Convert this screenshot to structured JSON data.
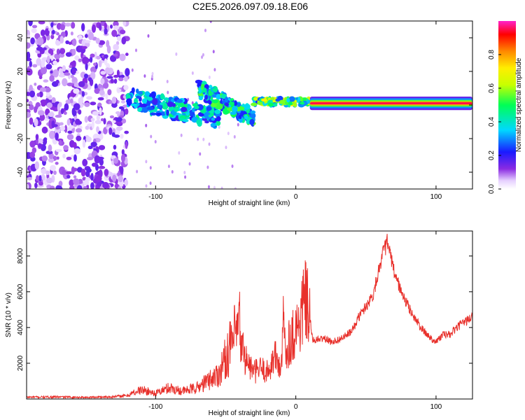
{
  "figure": {
    "title": "C2E5.2026.097.09.18.E06"
  },
  "chart_data": [
    {
      "type": "heatmap",
      "title": "C2E5.2026.097.09.18.E06",
      "xlabel": "Height of straight line (km)",
      "ylabel": "Frequency (Hz)",
      "xlim": [
        -192,
        126
      ],
      "ylim": [
        -50,
        50
      ],
      "xticks": [
        -100,
        0,
        100
      ],
      "yticks": [
        -40,
        -20,
        0,
        20,
        40
      ],
      "colorbar": {
        "label": "Normalized spectral amplitude",
        "range": [
          0,
          1
        ],
        "ticks": [
          0,
          0.2,
          0.4,
          0.6,
          0.8
        ]
      },
      "features": [
        {
          "name": "noise",
          "x_range": [
            -192,
            -120
          ],
          "y_range": [
            -50,
            50
          ],
          "amplitude": 0.15
        },
        {
          "name": "onset",
          "x_range": [
            -120,
            -55
          ],
          "centre_freq_start": 4,
          "centre_freq_end": -8,
          "spread": 6,
          "amplitude": 0.35
        },
        {
          "name": "shock",
          "x_range": [
            -70,
            -30
          ],
          "centre_freq_start": 10,
          "centre_freq_end": -8,
          "spread": 5,
          "amplitude": 0.4
        },
        {
          "name": "transition",
          "x_range": [
            -30,
            10
          ],
          "centre_freq": 2,
          "spread": 2,
          "amplitude": 0.55
        },
        {
          "name": "band",
          "x_range": [
            10,
            126
          ],
          "centre_freq": 1,
          "spread": 1,
          "amplitude": 0.95
        }
      ]
    },
    {
      "type": "line",
      "xlabel": "Height of straight line (km)",
      "ylabel": "SNR (10 * v/v)",
      "xlim": [
        -192,
        126
      ],
      "ylim": [
        0,
        9400
      ],
      "xticks": [
        -100,
        0,
        100
      ],
      "yticks": [
        2000,
        4000,
        6000,
        8000
      ],
      "series": [
        {
          "name": "SNR",
          "color": "#e8302b",
          "x": [
            -192,
            -170,
            -150,
            -130,
            -120,
            -115,
            -110,
            -100,
            -90,
            -85,
            -80,
            -70,
            -60,
            -55,
            -50,
            -45,
            -40,
            -37,
            -35,
            -30,
            -25,
            -20,
            -15,
            -12,
            -10,
            -9,
            -7,
            -5,
            -2,
            0,
            3,
            5,
            7,
            10,
            12,
            15,
            20,
            25,
            30,
            35,
            40,
            45,
            50,
            55,
            58,
            60,
            63,
            65,
            67,
            70,
            73,
            75,
            80,
            85,
            90,
            95,
            100,
            105,
            110,
            115,
            120,
            126
          ],
          "values": [
            80,
            90,
            70,
            100,
            150,
            300,
            400,
            250,
            500,
            400,
            350,
            500,
            900,
            1100,
            1800,
            2500,
            3200,
            2600,
            2100,
            1500,
            1700,
            1500,
            2400,
            1900,
            1800,
            4500,
            2600,
            3200,
            3600,
            4000,
            4200,
            5200,
            5500,
            4500,
            3300,
            3300,
            3400,
            3200,
            3300,
            3500,
            3800,
            4600,
            5200,
            5800,
            6800,
            7600,
            8300,
            8800,
            8200,
            7100,
            6500,
            6000,
            5200,
            4500,
            3900,
            3500,
            3200,
            3600,
            3600,
            4000,
            4300,
            4600
          ]
        }
      ]
    }
  ]
}
